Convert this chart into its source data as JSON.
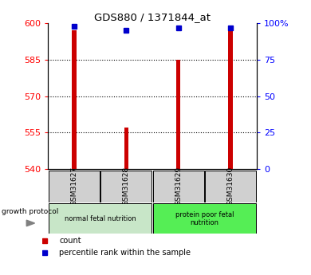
{
  "title": "GDS880 / 1371844_at",
  "samples": [
    "GSM31627",
    "GSM31628",
    "GSM31629",
    "GSM31630"
  ],
  "bar_values": [
    597,
    557,
    585,
    597
  ],
  "percentile_values": [
    98,
    95,
    97,
    97
  ],
  "bar_bottom": 540,
  "ylim_left": [
    540,
    600
  ],
  "ylim_right": [
    0,
    100
  ],
  "yticks_left": [
    540,
    555,
    570,
    585,
    600
  ],
  "yticks_right": [
    0,
    25,
    50,
    75,
    100
  ],
  "bar_color": "#cc0000",
  "percentile_color": "#0000cc",
  "group1_label": "normal fetal nutrition",
  "group2_label": "protein poor fetal\nnutrition",
  "group1_bg": "#c8e6c8",
  "group2_bg": "#55ee55",
  "sample_bg": "#d0d0d0",
  "growth_protocol_label": "growth protocol",
  "legend_count_label": "count",
  "legend_percentile_label": "percentile rank within the sample",
  "bar_width": 0.08
}
